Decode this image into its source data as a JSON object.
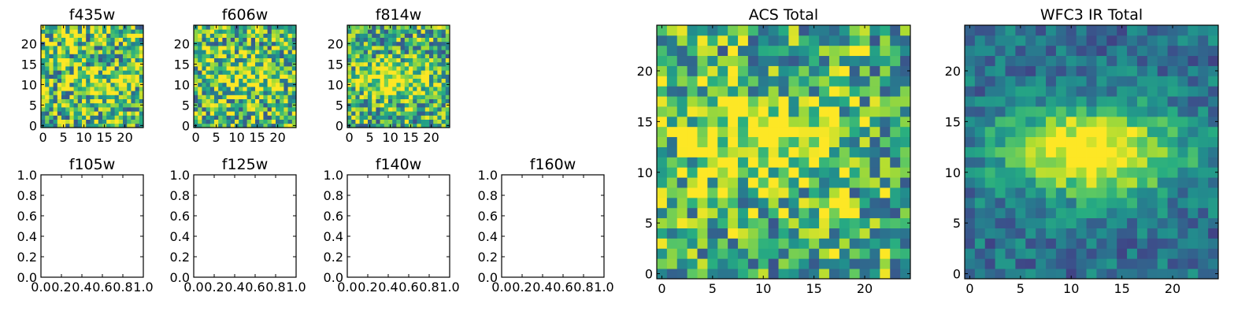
{
  "chart_data": [
    {
      "id": "f435w",
      "type": "heatmap",
      "title": "f435w",
      "grid_size": 25,
      "seed": 11,
      "blob": {
        "cx": 15,
        "cy": 10,
        "amp": 0.15
      },
      "xlim": [
        -0.5,
        24.5
      ],
      "ylim": [
        -0.5,
        24.5
      ],
      "x_ticks": [
        0,
        5,
        10,
        15,
        20
      ],
      "x_tick_labels": [
        "0",
        "5",
        "10",
        "15",
        "20"
      ],
      "y_ticks": [
        0,
        5,
        10,
        15,
        20
      ],
      "y_tick_labels": [
        "0",
        "5",
        "10",
        "15",
        "20"
      ],
      "colormap": "viridis"
    },
    {
      "id": "f606w",
      "type": "heatmap",
      "title": "f606w",
      "grid_size": 25,
      "seed": 23,
      "blob": {
        "cx": 12,
        "cy": 12,
        "amp": 0.25
      },
      "xlim": [
        -0.5,
        24.5
      ],
      "ylim": [
        -0.5,
        24.5
      ],
      "x_ticks": [
        0,
        5,
        10,
        15,
        20
      ],
      "x_tick_labels": [
        "0",
        "5",
        "10",
        "15",
        "20"
      ],
      "y_ticks": [
        0,
        5,
        10,
        15,
        20
      ],
      "y_tick_labels": [
        "0",
        "5",
        "10",
        "15",
        "20"
      ],
      "colormap": "viridis"
    },
    {
      "id": "f814w",
      "type": "heatmap",
      "title": "f814w",
      "grid_size": 25,
      "seed": 37,
      "blob": {
        "cx": 11,
        "cy": 11,
        "amp": 0.4
      },
      "xlim": [
        -0.5,
        24.5
      ],
      "ylim": [
        -0.5,
        24.5
      ],
      "x_ticks": [
        0,
        5,
        10,
        15,
        20
      ],
      "x_tick_labels": [
        "0",
        "5",
        "10",
        "15",
        "20"
      ],
      "y_ticks": [
        0,
        5,
        10,
        15,
        20
      ],
      "y_tick_labels": [
        "0",
        "5",
        "10",
        "15",
        "20"
      ],
      "colormap": "viridis"
    },
    {
      "id": "f105w",
      "type": "empty",
      "title": "f105w",
      "xlim": [
        0,
        1
      ],
      "ylim": [
        0,
        1
      ],
      "x_ticks": [
        0,
        0.2,
        0.4,
        0.6,
        0.8,
        1.0
      ],
      "x_tick_labels": [
        "0.0",
        "0.2",
        "0.4",
        "0.6",
        "0.8",
        "1.0"
      ],
      "y_ticks": [
        0,
        0.2,
        0.4,
        0.6,
        0.8,
        1.0
      ],
      "y_tick_labels": [
        "0.0",
        "0.2",
        "0.4",
        "0.6",
        "0.8",
        "1.0"
      ]
    },
    {
      "id": "f125w",
      "type": "empty",
      "title": "f125w",
      "xlim": [
        0,
        1
      ],
      "ylim": [
        0,
        1
      ],
      "x_ticks": [
        0,
        0.2,
        0.4,
        0.6,
        0.8,
        1.0
      ],
      "x_tick_labels": [
        "0.0",
        "0.2",
        "0.4",
        "0.6",
        "0.8",
        "1.0"
      ],
      "y_ticks": [
        0,
        0.2,
        0.4,
        0.6,
        0.8,
        1.0
      ],
      "y_tick_labels": [
        "0.0",
        "0.2",
        "0.4",
        "0.6",
        "0.8",
        "1.0"
      ]
    },
    {
      "id": "f140w",
      "type": "empty",
      "title": "f140w",
      "xlim": [
        0,
        1
      ],
      "ylim": [
        0,
        1
      ],
      "x_ticks": [
        0,
        0.2,
        0.4,
        0.6,
        0.8,
        1.0
      ],
      "x_tick_labels": [
        "0.0",
        "0.2",
        "0.4",
        "0.6",
        "0.8",
        "1.0"
      ],
      "y_ticks": [
        0,
        0.2,
        0.4,
        0.6,
        0.8,
        1.0
      ],
      "y_tick_labels": [
        "0.0",
        "0.2",
        "0.4",
        "0.6",
        "0.8",
        "1.0"
      ]
    },
    {
      "id": "f160w",
      "type": "empty",
      "title": "f160w",
      "xlim": [
        0,
        1
      ],
      "ylim": [
        0,
        1
      ],
      "x_ticks": [
        0,
        0.2,
        0.4,
        0.6,
        0.8,
        1.0
      ],
      "x_tick_labels": [
        "0.0",
        "0.2",
        "0.4",
        "0.6",
        "0.8",
        "1.0"
      ],
      "y_ticks": [
        0,
        0.2,
        0.4,
        0.6,
        0.8,
        1.0
      ],
      "y_tick_labels": [
        "0.0",
        "0.2",
        "0.4",
        "0.6",
        "0.8",
        "1.0"
      ]
    },
    {
      "id": "acs_total",
      "type": "heatmap",
      "title": "ACS Total",
      "grid_size": 25,
      "seed": 53,
      "blob": {
        "cx": 10,
        "cy": 13,
        "amp": 0.35
      },
      "xlim": [
        -0.5,
        24.5
      ],
      "ylim": [
        -0.5,
        24.5
      ],
      "x_ticks": [
        0,
        5,
        10,
        15,
        20
      ],
      "x_tick_labels": [
        "0",
        "5",
        "10",
        "15",
        "20"
      ],
      "y_ticks": [
        0,
        5,
        10,
        15,
        20
      ],
      "y_tick_labels": [
        "0",
        "5",
        "10",
        "15",
        "20"
      ],
      "colormap": "viridis"
    },
    {
      "id": "wfc3_ir_total",
      "type": "heatmap",
      "title": "WFC3 IR Total",
      "grid_size": 25,
      "seed": 71,
      "blob": {
        "cx": 12,
        "cy": 12,
        "amp": 0.75
      },
      "xlim": [
        -0.5,
        24.5
      ],
      "ylim": [
        -0.5,
        24.5
      ],
      "x_ticks": [
        0,
        5,
        10,
        15,
        20
      ],
      "x_tick_labels": [
        "0",
        "5",
        "10",
        "15",
        "20"
      ],
      "y_ticks": [
        0,
        5,
        10,
        15,
        20
      ],
      "y_tick_labels": [
        "0",
        "5",
        "10",
        "15",
        "20"
      ],
      "colormap": "viridis"
    }
  ]
}
